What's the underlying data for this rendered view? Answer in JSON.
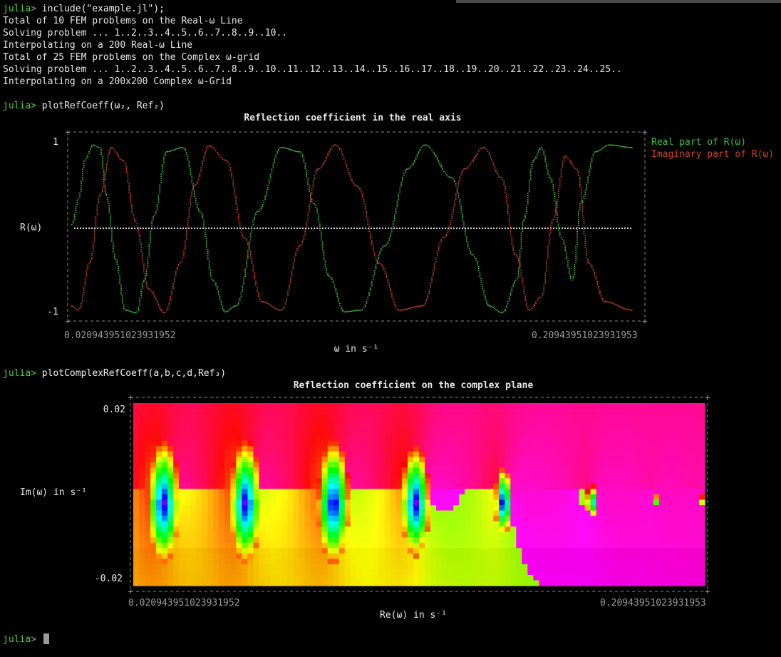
{
  "terminal": {
    "prompt": "julia>",
    "lines": [
      {
        "kind": "cmd",
        "text": "include(\"example.jl\");"
      },
      {
        "kind": "out",
        "text": "Total of 10 FEM problems on the Real-ω Line"
      },
      {
        "kind": "out",
        "text": "Solving problem ... 1..2..3..4..5..6..7..8..9..10.."
      },
      {
        "kind": "out",
        "text": "Interpolating on a 200 Real-ω Line"
      },
      {
        "kind": "out",
        "text": "Total of 25 FEM problems on the Complex ω-grid"
      },
      {
        "kind": "out",
        "text": "Solving problem ... 1..2..3..4..5..6..7..8..9..10..11..12..13..14..15..16..17..18..19..20..21..22..23..24..25.."
      },
      {
        "kind": "out",
        "text": "Interpolating on a 200x200 Complex ω-Grid"
      }
    ],
    "cmd2": "plotRefCoeff(ω₂, Ref₂)",
    "cmd3": "plotComplexRefCoeff(a,b,c,d,Ref₃)"
  },
  "colors": {
    "prompt": "#4fd14f",
    "real_series": "#3bbf3b",
    "imag_series": "#d0402a",
    "axis_gray": "#8a8a8a"
  },
  "chart_data": [
    {
      "type": "line",
      "title": "Reflection coefficient in the real axis",
      "xlabel": "ω in s⁻¹",
      "ylabel": "R(ω)",
      "x_tick_labels": [
        "0.020943951023931952",
        "0.20943951023931953"
      ],
      "y_tick_labels": [
        "1",
        "-1"
      ],
      "xlim": [
        0.020943951023931952,
        0.20943951023931953
      ],
      "ylim": [
        -1,
        1
      ],
      "legend": "top-right",
      "grid": false,
      "series": [
        {
          "name": "Real part of R(ω)",
          "color": "#3bbf3b",
          "x": [
            0.0209,
            0.0231,
            0.0252,
            0.0281,
            0.0303,
            0.0324,
            0.0355,
            0.0388,
            0.0427,
            0.0452,
            0.0485,
            0.0527,
            0.0583,
            0.0641,
            0.0683,
            0.0726,
            0.0762,
            0.0834,
            0.0914,
            0.0977,
            0.1023,
            0.1074,
            0.1126,
            0.1182,
            0.1262,
            0.1339,
            0.1398,
            0.1487,
            0.1557,
            0.1614,
            0.1658,
            0.1706,
            0.1729,
            0.1762,
            0.1789,
            0.1818,
            0.1856,
            0.1893,
            0.1921,
            0.1971,
            0.2019,
            0.2094
          ],
          "y": [
            0.05,
            0.35,
            0.8,
            0.98,
            0.95,
            0.4,
            -0.35,
            -0.95,
            -0.98,
            -0.6,
            0.15,
            0.9,
            0.95,
            0.2,
            -0.6,
            -0.97,
            -0.9,
            0.2,
            0.95,
            0.9,
            0.3,
            -0.55,
            -0.97,
            -0.95,
            -0.2,
            0.7,
            0.98,
            0.6,
            -0.3,
            -0.9,
            -0.98,
            -0.6,
            0.1,
            0.8,
            0.95,
            0.6,
            -0.1,
            -0.6,
            0.3,
            0.9,
            0.98,
            0.95
          ]
        },
        {
          "name": "Imaginary part of R(ω)",
          "color": "#d0402a",
          "x": [
            0.0209,
            0.0232,
            0.0268,
            0.0304,
            0.0341,
            0.0382,
            0.0421,
            0.0467,
            0.0521,
            0.0574,
            0.0621,
            0.0671,
            0.0729,
            0.0789,
            0.0849,
            0.0914,
            0.0976,
            0.1038,
            0.1096,
            0.1169,
            0.1243,
            0.1311,
            0.1389,
            0.1461,
            0.1531,
            0.1596,
            0.1654,
            0.1702,
            0.1748,
            0.1788,
            0.1827,
            0.1869,
            0.1908,
            0.1948,
            0.2003,
            0.2094
          ],
          "y": [
            -0.9,
            -0.95,
            -0.4,
            0.4,
            0.95,
            0.8,
            0.1,
            -0.7,
            -0.98,
            -0.4,
            0.5,
            0.97,
            0.8,
            -0.1,
            -0.85,
            -0.95,
            -0.2,
            0.7,
            0.98,
            0.5,
            -0.4,
            -0.95,
            -0.9,
            -0.1,
            0.7,
            0.95,
            0.6,
            -0.3,
            -0.95,
            -0.8,
            0.1,
            0.85,
            0.7,
            -0.4,
            -0.85,
            -0.95
          ]
        }
      ]
    },
    {
      "type": "heatmap",
      "title": "Reflection coefficient on the complex plane",
      "xlabel": "Re(ω) in s⁻¹",
      "ylabel": "Im(ω) in s⁻¹",
      "x_tick_labels": [
        "0.020943951023931952",
        "0.20943951023931953"
      ],
      "y_tick_labels": [
        "0.02",
        "-0.02"
      ],
      "xlim": [
        0.020943951023931952,
        0.20943951023931953
      ],
      "ylim": [
        -0.02,
        0.02
      ],
      "colormap": "phase (hue)",
      "resonances": [
        {
          "re": 0.031,
          "im": 0.0,
          "size": 1.0
        },
        {
          "re": 0.058,
          "im": 0.0,
          "size": 1.0
        },
        {
          "re": 0.087,
          "im": 0.0,
          "size": 1.0
        },
        {
          "re": 0.114,
          "im": 0.0,
          "size": 0.9
        },
        {
          "re": 0.143,
          "im": 0.0,
          "size": 0.55
        },
        {
          "re": 0.172,
          "im": 0.0,
          "size": 0.28
        },
        {
          "re": 0.193,
          "im": 0.0,
          "size": 0.1
        },
        {
          "re": 0.208,
          "im": 0.0,
          "size": 0.08
        }
      ]
    }
  ]
}
